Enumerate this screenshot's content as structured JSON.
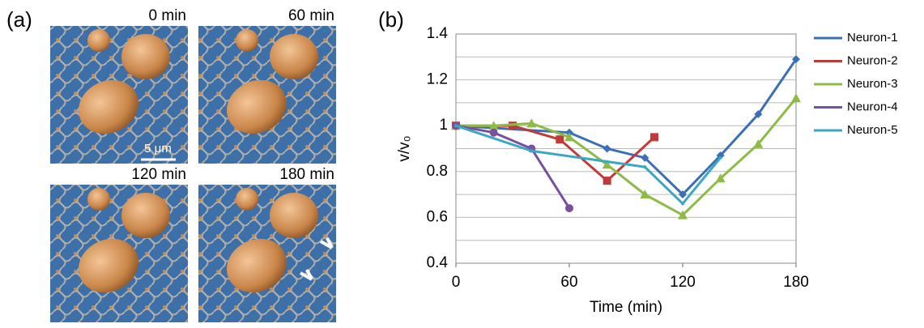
{
  "figure": {
    "panel_a_label": "(a)",
    "panel_b_label": "(b)",
    "images": [
      "0 min",
      "60 min",
      "120 min",
      "180 min"
    ],
    "scale_bar": "5 μm"
  },
  "chart_data": {
    "type": "line",
    "x_label": "Time (min)",
    "y_label": "v/v₀",
    "xlim": [
      0,
      180
    ],
    "xticks": [
      0,
      60,
      120,
      180
    ],
    "ylim": [
      0.4,
      1.4
    ],
    "yticks": [
      0.4,
      0.6,
      0.8,
      1,
      1.2,
      1.4
    ],
    "minor_yticks": [
      0.5,
      0.7,
      0.9,
      1.1,
      1.3
    ],
    "grid": true,
    "legend": "right",
    "series": [
      {
        "name": "Neuron-1",
        "color": "#3b6fb6",
        "marker": "diamond",
        "x": [
          0,
          60,
          80,
          100,
          120,
          140,
          160,
          180
        ],
        "values": [
          1.0,
          0.97,
          0.9,
          0.86,
          0.7,
          0.87,
          1.05,
          1.29
        ]
      },
      {
        "name": "Neuron-2",
        "color": "#c0393b",
        "marker": "square",
        "x": [
          0,
          30,
          55,
          80,
          105
        ],
        "values": [
          1.0,
          1.0,
          0.94,
          0.76,
          0.95
        ]
      },
      {
        "name": "Neuron-3",
        "color": "#8dbb45",
        "marker": "triangle",
        "x": [
          0,
          20,
          40,
          60,
          80,
          100,
          120,
          140,
          160,
          180
        ],
        "values": [
          1.0,
          1.0,
          1.01,
          0.95,
          0.83,
          0.7,
          0.61,
          0.77,
          0.92,
          1.12
        ]
      },
      {
        "name": "Neuron-4",
        "color": "#7a4fa0",
        "marker": "circle",
        "x": [
          0,
          20,
          40,
          60
        ],
        "values": [
          1.0,
          0.97,
          0.9,
          0.64
        ]
      },
      {
        "name": "Neuron-5",
        "color": "#3aa7c4",
        "marker": "none",
        "x": [
          0,
          40,
          100,
          120,
          140
        ],
        "values": [
          1.0,
          0.89,
          0.82,
          0.66,
          0.86
        ]
      }
    ]
  }
}
